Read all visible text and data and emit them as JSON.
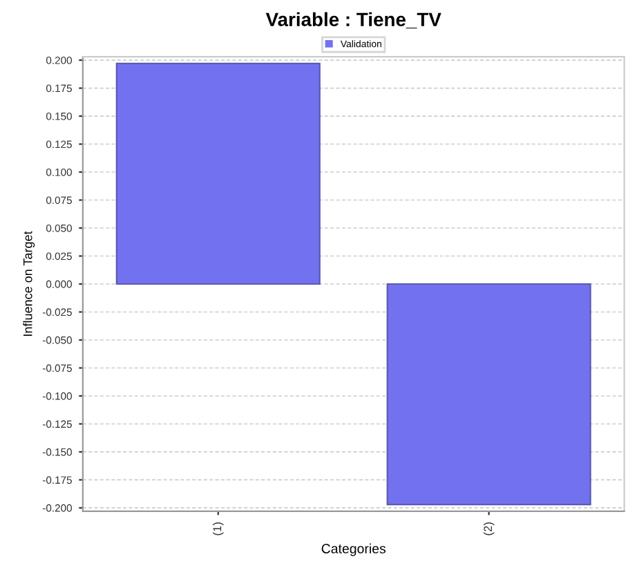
{
  "chart_data": {
    "type": "bar",
    "title": "Variable : Tiene_TV",
    "xlabel": "Categories",
    "ylabel": "Influence on Target",
    "categories": [
      "(1)",
      "(2)"
    ],
    "series": [
      {
        "name": "Validation",
        "color": "#7272f0",
        "values": [
          0.197,
          -0.197
        ]
      }
    ],
    "ylim": [
      -0.203,
      0.203
    ],
    "yticks": [
      {
        "value": -0.2,
        "label": "-0.200"
      },
      {
        "value": -0.175,
        "label": "-0.175"
      },
      {
        "value": -0.15,
        "label": "-0.150"
      },
      {
        "value": -0.125,
        "label": "-0.125"
      },
      {
        "value": -0.1,
        "label": "-0.100"
      },
      {
        "value": -0.075,
        "label": "-0.075"
      },
      {
        "value": -0.05,
        "label": "-0.050"
      },
      {
        "value": -0.025,
        "label": "-0.025"
      },
      {
        "value": 0,
        "label": "0.000"
      },
      {
        "value": 0.025,
        "label": "0.025"
      },
      {
        "value": 0.05,
        "label": "0.050"
      },
      {
        "value": 0.075,
        "label": "0.075"
      },
      {
        "value": 0.1,
        "label": "0.100"
      },
      {
        "value": 0.125,
        "label": "0.125"
      },
      {
        "value": 0.15,
        "label": "0.150"
      },
      {
        "value": 0.175,
        "label": "0.175"
      },
      {
        "value": 0.2,
        "label": "0.200"
      }
    ],
    "grid": "y",
    "legend": "top"
  }
}
